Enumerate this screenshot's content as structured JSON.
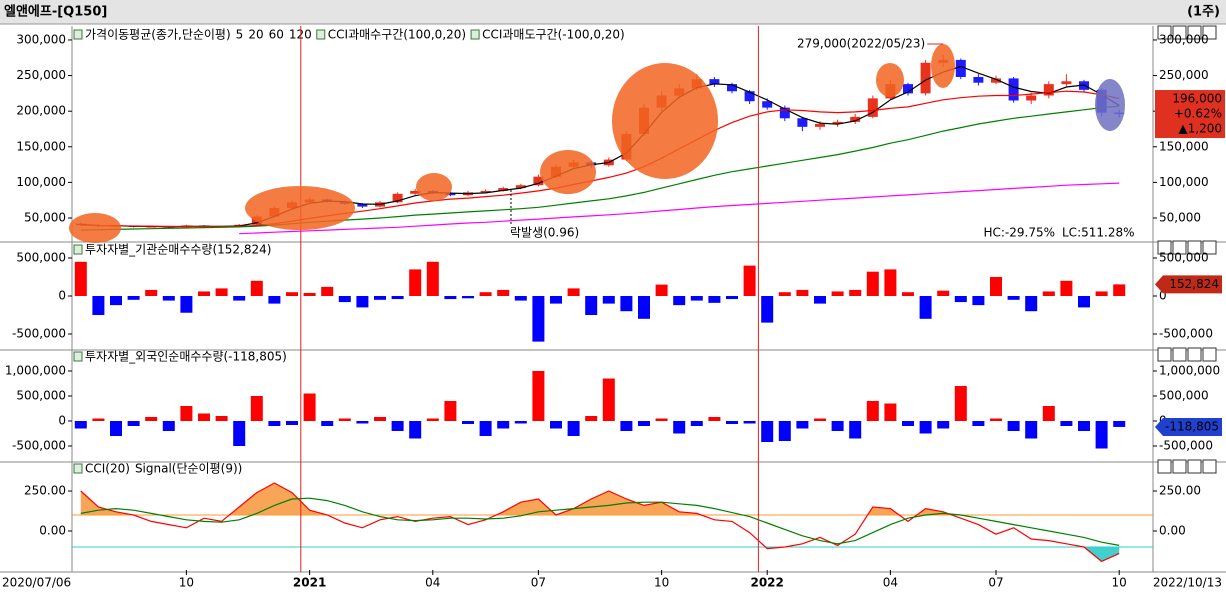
{
  "window": {
    "title": "엘앤에프-[Q150]",
    "period": "(1주)"
  },
  "x_axis": {
    "categories": [
      null,
      null,
      null,
      null,
      null,
      null,
      "10",
      null,
      null,
      null,
      null,
      null,
      null,
      "2021",
      null,
      null,
      null,
      null,
      null,
      null,
      "04",
      null,
      null,
      null,
      null,
      null,
      "07",
      null,
      null,
      null,
      null,
      null,
      null,
      "10",
      null,
      null,
      null,
      null,
      null,
      "2022",
      null,
      null,
      null,
      null,
      null,
      null,
      "04",
      null,
      null,
      null,
      null,
      null,
      "07",
      null,
      null,
      null,
      null,
      null,
      null,
      "10"
    ],
    "start_label": "2020/07/06",
    "end_label": "2022/10/13"
  },
  "chart_data": [
    {
      "type": "candlestick",
      "legend_prefix": "가격이동평균(종가,단순이평)",
      "up_color": "#e8321e",
      "down_color": "#1c1cff",
      "open": [
        42000,
        40000,
        38500,
        39000,
        37500,
        38000,
        37000,
        39500,
        38000,
        37500,
        40500,
        52000,
        64000,
        72000,
        76000,
        73000,
        70000,
        66000,
        72000,
        84000,
        88000,
        85000,
        82000,
        86000,
        88000,
        92000,
        96000,
        108000,
        122000,
        128000,
        124000,
        132000,
        168000,
        205000,
        222000,
        232000,
        245000,
        238000,
        228000,
        214000,
        205000,
        190000,
        178000,
        182000,
        185000,
        192000,
        218000,
        238000,
        225000,
        268000,
        272000,
        248000,
        240000,
        246000,
        215000,
        222000,
        238000,
        242000,
        230000,
        198000
      ],
      "high": [
        43500,
        41000,
        40500,
        39500,
        39000,
        38500,
        40500,
        40000,
        38500,
        41500,
        54000,
        66000,
        75000,
        79000,
        77500,
        74500,
        71000,
        74000,
        86000,
        91000,
        89500,
        86500,
        88000,
        90000,
        94000,
        98000,
        111000,
        125000,
        132000,
        130000,
        135000,
        172000,
        210000,
        228000,
        238000,
        252000,
        248000,
        240000,
        230000,
        218000,
        208000,
        192000,
        186000,
        188000,
        196000,
        222000,
        244000,
        240000,
        272000,
        279000,
        274000,
        252000,
        250000,
        248000,
        226000,
        242000,
        252000,
        244000,
        232000,
        202000
      ],
      "low": [
        39000,
        37500,
        37800,
        36800,
        37000,
        36200,
        36500,
        37200,
        36900,
        37000,
        40000,
        50500,
        62000,
        70500,
        71500,
        68500,
        64000,
        65000,
        71000,
        82500,
        83500,
        80500,
        80500,
        84500,
        87000,
        90500,
        94500,
        106000,
        120000,
        121000,
        122000,
        130000,
        165000,
        200000,
        218000,
        229000,
        234000,
        225000,
        210000,
        202000,
        186000,
        172000,
        174000,
        178000,
        182000,
        190000,
        215000,
        222000,
        222000,
        262000,
        245000,
        236000,
        238000,
        212000,
        210000,
        218000,
        235000,
        226000,
        193000,
        191000
      ],
      "close": [
        40000,
        38500,
        39000,
        37500,
        38000,
        37000,
        39500,
        38000,
        37500,
        40500,
        52000,
        64000,
        72000,
        76000,
        73000,
        70000,
        66000,
        72000,
        84000,
        88000,
        85000,
        82000,
        86000,
        88000,
        92000,
        96000,
        108000,
        122000,
        128000,
        124000,
        132000,
        168000,
        205000,
        222000,
        232000,
        245000,
        238000,
        228000,
        214000,
        205000,
        190000,
        178000,
        182000,
        185000,
        192000,
        218000,
        238000,
        225000,
        268000,
        272000,
        248000,
        240000,
        246000,
        215000,
        222000,
        238000,
        242000,
        230000,
        198000,
        196000
      ],
      "series": [
        {
          "name": "5",
          "color": "#000000",
          "values": [
            41000,
            39500,
            39200,
            38300,
            38200,
            37500,
            38200,
            38200,
            38300,
            38700,
            43300,
            52200,
            62700,
            70700,
            73700,
            73000,
            69700,
            69300,
            74000,
            81300,
            85700,
            85000,
            84300,
            85300,
            88700,
            92000,
            98700,
            108700,
            119300,
            124700,
            128000,
            141300,
            168300,
            198300,
            219700,
            233000,
            238300,
            237000,
            226700,
            215700,
            203000,
            191000,
            183300,
            181700,
            186300,
            198300,
            216000,
            227000,
            243700,
            255000,
            262700,
            253300,
            244700,
            233700,
            227700,
            225000,
            234000,
            236700,
            223300,
            208000
          ]
        },
        {
          "name": "20",
          "color": "#ff0000",
          "values": [
            40000,
            39500,
            39000,
            38700,
            38500,
            38200,
            38100,
            38100,
            38000,
            38200,
            39500,
            42000,
            45500,
            49500,
            53000,
            56500,
            59500,
            63000,
            67000,
            71000,
            74000,
            76500,
            78000,
            80000,
            82000,
            85000,
            88000,
            92000,
            97000,
            102000,
            107000,
            113000,
            122000,
            134000,
            147000,
            160000,
            173000,
            184000,
            193000,
            199000,
            202000,
            201000,
            199000,
            198000,
            199000,
            201000,
            204000,
            206000,
            211000,
            216000,
            219000,
            221000,
            222000,
            222000,
            224000,
            226000,
            228000,
            227000,
            223000,
            218000
          ]
        },
        {
          "name": "60",
          "color": "#008000",
          "values": [
            33000,
            33500,
            34000,
            34500,
            35000,
            35500,
            36000,
            36500,
            37000,
            37500,
            38500,
            40000,
            42000,
            44000,
            45500,
            47000,
            48500,
            50000,
            52000,
            54000,
            55500,
            57000,
            58500,
            60000,
            61500,
            63000,
            65000,
            68000,
            71000,
            74000,
            77000,
            81000,
            86000,
            92000,
            98000,
            104000,
            110000,
            115000,
            119000,
            123000,
            127000,
            131000,
            135000,
            139000,
            144000,
            149000,
            155000,
            160000,
            166000,
            172000,
            177000,
            182000,
            186000,
            190000,
            193000,
            196000,
            199000,
            202000,
            205000,
            207000
          ]
        },
        {
          "name": "120",
          "color": "#ff00ff",
          "values": [
            null,
            null,
            null,
            null,
            null,
            null,
            null,
            null,
            null,
            28000,
            29000,
            30000,
            31000,
            32000,
            33000,
            34000,
            35000,
            36000,
            37000,
            38500,
            40000,
            41500,
            43000,
            44000,
            45500,
            47000,
            48500,
            50000,
            51500,
            53000,
            54500,
            56000,
            58000,
            60000,
            62000,
            64000,
            66000,
            67500,
            69000,
            70500,
            72000,
            73500,
            75000,
            76500,
            78000,
            79500,
            81000,
            82500,
            84000,
            85500,
            87000,
            88500,
            90000,
            91500,
            93000,
            94500,
            96000,
            97000,
            98000,
            99000
          ]
        }
      ],
      "bands": [
        {
          "name": "CCI과매수구간(100,0,20)",
          "color": "#f26522"
        },
        {
          "name": "CCI과매도구간(-100,0,20)",
          "color": "#7070c0"
        }
      ],
      "ylim": [
        19100,
        314000
      ],
      "yticks": [
        {
          "value": 50000,
          "label": "50,000"
        },
        {
          "value": 100000,
          "label": "100,000"
        },
        {
          "value": 150000,
          "label": "150,000"
        },
        {
          "value": 200000,
          "label": "200,000"
        },
        {
          "value": 250000,
          "label": "250,000"
        },
        {
          "value": 300000,
          "label": "300,000"
        }
      ],
      "annotations": {
        "peak": "279,000(2022/05/23)",
        "event": "락발생(0.96)",
        "hc": "HC:-29.75%",
        "lc": "LC:511.28%"
      },
      "price_box": {
        "value": 196000,
        "label": "196,000",
        "change": "+0.62%",
        "diff": "▲1,200",
        "color": "#e03020"
      }
    },
    {
      "type": "bar",
      "title": "투자자별_기관순매수수량(152,824)",
      "title_color": "#008000",
      "up_color": "#ff0000",
      "down_color": "#0000ff",
      "values": [
        450000,
        -250000,
        -120000,
        -50000,
        80000,
        -60000,
        -220000,
        60000,
        100000,
        -60000,
        200000,
        -100000,
        50000,
        40000,
        120000,
        -80000,
        -150000,
        -50000,
        -40000,
        350000,
        450000,
        -40000,
        -30000,
        50000,
        80000,
        -60000,
        -600000,
        -100000,
        100000,
        -250000,
        -100000,
        -200000,
        -300000,
        150000,
        -120000,
        -60000,
        -90000,
        -40000,
        400000,
        -350000,
        50000,
        80000,
        -100000,
        60000,
        80000,
        320000,
        350000,
        50000,
        -300000,
        70000,
        -80000,
        -120000,
        250000,
        -50000,
        -200000,
        60000,
        200000,
        -150000,
        60000,
        152824
      ],
      "ylim": [
        -684000,
        671000
      ],
      "yticks": [
        {
          "value": -500000,
          "label": "-500,000"
        },
        0,
        {
          "value": 500000,
          "label": "500,000"
        }
      ],
      "last_label": {
        "value": 152824,
        "label": "152,824",
        "color": "#c02818"
      }
    },
    {
      "type": "bar",
      "title": "투자자별_외국인순매수수량(-118,805)",
      "title_color": "#008000",
      "up_color": "#ff0000",
      "down_color": "#0000ff",
      "values": [
        -150000,
        50000,
        -300000,
        -100000,
        80000,
        -200000,
        300000,
        150000,
        100000,
        -500000,
        500000,
        -100000,
        -80000,
        550000,
        -100000,
        50000,
        -50000,
        80000,
        -200000,
        -350000,
        50000,
        400000,
        -60000,
        -300000,
        -150000,
        -50000,
        1000000,
        -150000,
        -300000,
        100000,
        850000,
        -200000,
        -100000,
        50000,
        -250000,
        -100000,
        80000,
        -60000,
        -50000,
        -420000,
        -400000,
        -150000,
        50000,
        -200000,
        -350000,
        400000,
        350000,
        -100000,
        -250000,
        -150000,
        700000,
        -100000,
        50000,
        -200000,
        -350000,
        300000,
        -100000,
        -200000,
        -550000,
        -118805
      ],
      "ylim": [
        -780000,
        1380000
      ],
      "yticks": [
        {
          "value": -500000,
          "label": "-500,000"
        },
        0,
        {
          "value": 500000,
          "label": "500,000"
        },
        {
          "value": 1000000,
          "label": "1,000,000"
        }
      ],
      "last_label": {
        "value": -118805,
        "label": "-118,805",
        "color": "#2040d0"
      }
    },
    {
      "type": "line",
      "series": [
        {
          "name": "CCI(20)",
          "color": "#ff0000",
          "values": [
            250,
            150,
            120,
            100,
            60,
            40,
            20,
            80,
            60,
            150,
            240,
            300,
            240,
            130,
            100,
            50,
            20,
            70,
            90,
            60,
            80,
            90,
            40,
            70,
            120,
            180,
            200,
            100,
            140,
            200,
            250,
            200,
            160,
            180,
            120,
            110,
            70,
            60,
            -10,
            -110,
            -100,
            -80,
            -40,
            -90,
            -20,
            150,
            140,
            60,
            140,
            120,
            80,
            40,
            -20,
            20,
            -50,
            -60,
            -80,
            -100,
            -190,
            -140
          ]
        },
        {
          "name": "Signal(단순이평(9))",
          "color": "#008000",
          "values": [
            110,
            130,
            140,
            130,
            110,
            90,
            70,
            60,
            55,
            70,
            110,
            160,
            200,
            205,
            190,
            160,
            120,
            90,
            70,
            65,
            70,
            80,
            80,
            75,
            80,
            95,
            120,
            130,
            140,
            150,
            160,
            175,
            180,
            180,
            170,
            160,
            140,
            115,
            90,
            50,
            10,
            -30,
            -60,
            -80,
            -60,
            -10,
            40,
            80,
            100,
            110,
            100,
            80,
            60,
            40,
            20,
            0,
            -20,
            -40,
            -70,
            -90
          ]
        }
      ],
      "levels": [
        {
          "value": 100,
          "color": "#ff9933",
          "fill": "#f9a557"
        },
        {
          "value": -100,
          "color": "#33cccc",
          "fill": "#40d0d0"
        }
      ],
      "ylim": [
        -244,
        419
      ],
      "yticks": [
        {
          "value": 0,
          "label": "0.00"
        },
        {
          "value": 250,
          "label": "250.00"
        }
      ]
    }
  ]
}
